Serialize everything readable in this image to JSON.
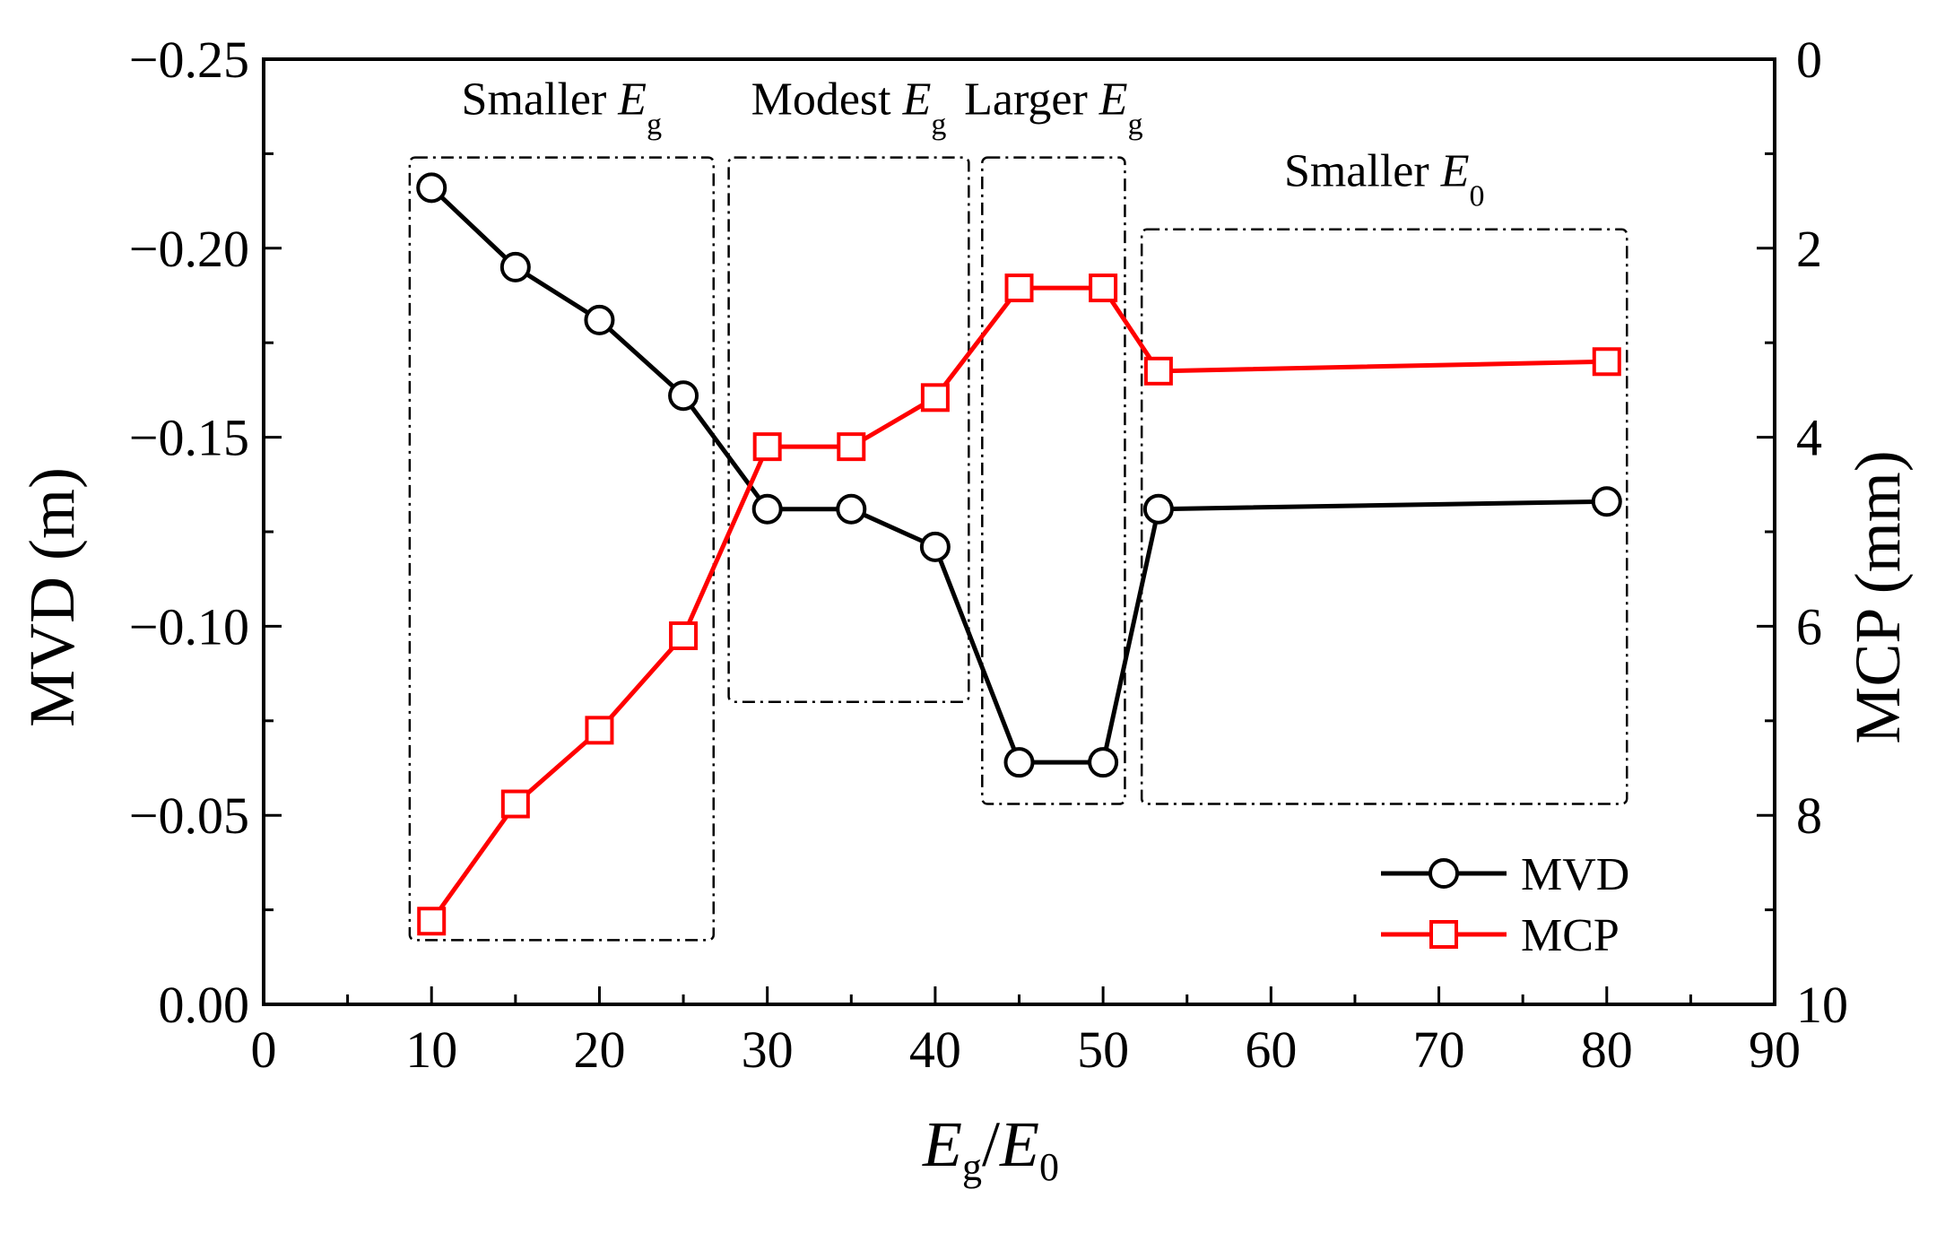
{
  "chart_data": {
    "type": "line",
    "title": "",
    "xlabel": {
      "main": "E",
      "sub": "g",
      "sep": "/",
      "main2": "E",
      "sub2": "0"
    },
    "ylabel_left": "MVD (m)",
    "ylabel_right": "MCP (mm)",
    "xlim": [
      0,
      90
    ],
    "ylim_left": [
      0.0,
      -0.25
    ],
    "ylim_right": [
      10,
      0
    ],
    "x_ticks": [
      "0",
      "10",
      "20",
      "30",
      "40",
      "50",
      "60",
      "70",
      "80",
      "90"
    ],
    "y_left_ticks": [
      "0.00",
      "−0.05",
      "−0.10",
      "−0.15",
      "−0.20",
      "−0.25"
    ],
    "y_left_tick_values": [
      0.0,
      -0.05,
      -0.1,
      -0.15,
      -0.2,
      -0.25
    ],
    "y_right_ticks": [
      "10",
      "8",
      "6",
      "4",
      "2",
      "0"
    ],
    "y_right_tick_values": [
      10,
      8,
      6,
      4,
      2,
      0
    ],
    "series": [
      {
        "name": "MVD",
        "axis": "left",
        "color": "#000000",
        "marker": "circle",
        "x": [
          10,
          15,
          20,
          25,
          30,
          35,
          40,
          45,
          50,
          53.3,
          80
        ],
        "values": [
          -0.216,
          -0.195,
          -0.181,
          -0.161,
          -0.131,
          -0.131,
          -0.121,
          -0.064,
          -0.064,
          -0.131,
          -0.133
        ]
      },
      {
        "name": "MCP",
        "axis": "right",
        "color": "#ff0000",
        "marker": "square",
        "x": [
          10,
          15,
          20,
          25,
          30,
          35,
          40,
          45,
          50,
          53.3,
          80
        ],
        "values": [
          9.12,
          7.88,
          7.1,
          6.1,
          4.1,
          4.1,
          3.58,
          2.42,
          2.42,
          3.3,
          3.2
        ]
      }
    ],
    "regions": [
      {
        "label_main": "Smaller ",
        "label_italic": "E",
        "label_sub": "g",
        "x0": 8.7,
        "x1": 26.8,
        "y_top": -0.224,
        "y_bottom": -0.017
      },
      {
        "label_main": "Modest ",
        "label_italic": "E",
        "label_sub": "g",
        "x0": 27.7,
        "x1": 42.0,
        "y_top": -0.224,
        "y_bottom": -0.08
      },
      {
        "label_main": "Larger ",
        "label_italic": "E",
        "label_sub": "g",
        "x0": 42.8,
        "x1": 51.3,
        "y_top": -0.224,
        "y_bottom": -0.053
      },
      {
        "label_main": "Smaller ",
        "label_italic": "E",
        "label_sub": "0",
        "x0": 52.3,
        "x1": 81.2,
        "y_top": -0.205,
        "y_bottom": -0.053
      }
    ],
    "legend": {
      "position": "bottom-right",
      "entries": [
        "MVD",
        "MCP"
      ]
    },
    "grid": false
  }
}
